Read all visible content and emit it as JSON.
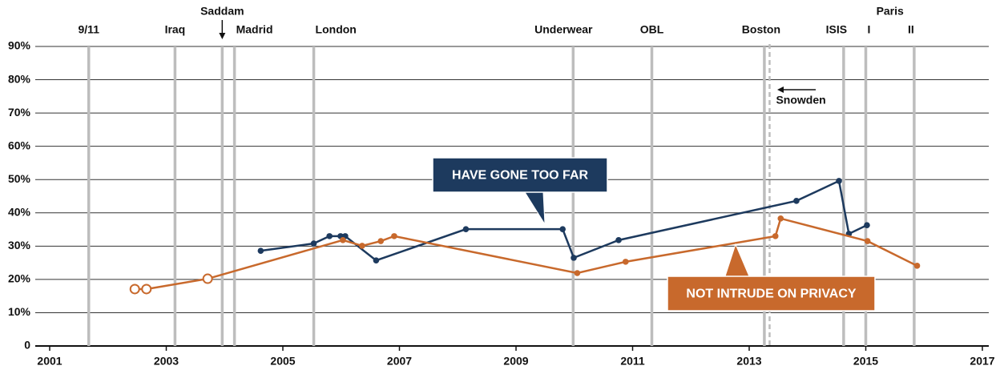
{
  "chart_data": {
    "type": "line",
    "xlim": [
      2001,
      2017
    ],
    "xticks": [
      2001,
      2003,
      2005,
      2007,
      2009,
      2011,
      2013,
      2015,
      2017
    ],
    "ylim": [
      0,
      90
    ],
    "yticks": [
      0,
      {
        "value": 10,
        "label": "10%"
      },
      {
        "value": 20,
        "label": "20%"
      },
      {
        "value": 30,
        "label": "30%"
      },
      {
        "value": 40,
        "label": "40%"
      },
      {
        "value": 50,
        "label": "50%"
      },
      {
        "value": 60,
        "label": "60%"
      },
      {
        "value": 70,
        "label": "70%"
      },
      {
        "value": 80,
        "label": "80%"
      },
      {
        "value": 90,
        "label": "90%"
      }
    ],
    "grid": true,
    "events": [
      {
        "label": "9/11",
        "x": 2001.67
      },
      {
        "label": "Iraq",
        "x": 2003.15
      },
      {
        "label": "Saddam",
        "x": 2003.96
      },
      {
        "label": "Madrid",
        "x": 2004.17
      },
      {
        "label": "London",
        "x": 2005.53
      },
      {
        "label": "Underwear",
        "x": 2009.98
      },
      {
        "label": "OBL",
        "x": 2011.33
      },
      {
        "label": "Boston",
        "x": 2013.26
      },
      {
        "label": "Snowden",
        "x": 2013.35,
        "style": "dashed"
      },
      {
        "label": "ISIS",
        "x": 2014.62
      },
      {
        "label": "I",
        "x": 2015.0
      },
      {
        "label": "II",
        "x": 2015.83
      }
    ],
    "annotations": [
      "Paris"
    ],
    "series": [
      {
        "name": "HAVE GONE TOO FAR",
        "color": "#1d3a5e",
        "x": [
          2004.62,
          2005.53,
          2005.8,
          2005.99,
          2006.07,
          2006.6,
          2008.14,
          2009.8,
          2009.99,
          2010.76,
          2013.81,
          2014.54,
          2014.71,
          2015.02
        ],
        "values": [
          28.6,
          30.8,
          33.0,
          33.0,
          33.0,
          25.7,
          35.1,
          35.1,
          26.5,
          31.8,
          43.6,
          49.6,
          33.7,
          36.3
        ]
      },
      {
        "name": "NOT INTRUDE ON PRIVACY",
        "color": "#c8692c",
        "x": [
          2002.46,
          2002.66,
          2003.71,
          2006.03,
          2006.36,
          2006.68,
          2006.91,
          2010.05,
          2010.88,
          2013.45,
          2013.54,
          2015.03,
          2015.88
        ],
        "values": [
          17.1,
          17.1,
          20.2,
          31.8,
          30.1,
          31.5,
          33.0,
          21.9,
          25.3,
          33.0,
          38.3,
          31.5,
          24.1
        ],
        "marker_fill": [
          "open",
          "open",
          "open",
          "filled",
          "filled",
          "filled",
          "filled",
          "filled",
          "filled",
          "filled",
          "filled",
          "filled",
          "filled"
        ]
      }
    ]
  }
}
